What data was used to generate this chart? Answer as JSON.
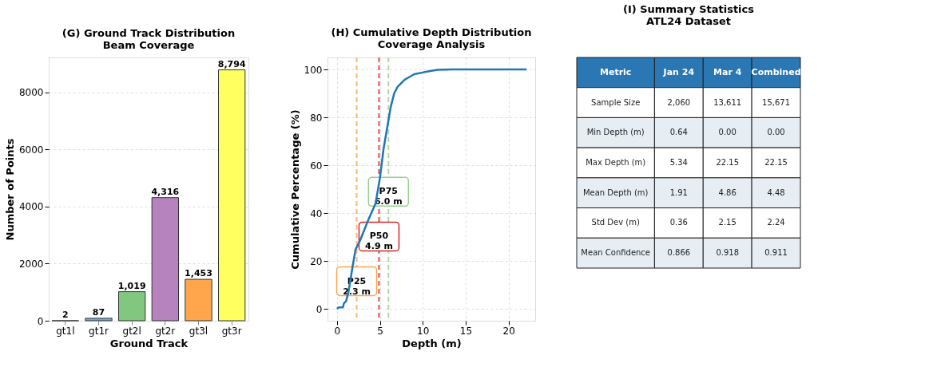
{
  "chart_data": [
    {
      "type": "bar",
      "title": "(G) Ground Track Distribution\nBeam Coverage",
      "xlabel": "Ground Track",
      "ylabel": "Number of Points",
      "categories": [
        "gt1l",
        "gt1r",
        "gt2l",
        "gt2r",
        "gt3l",
        "gt3r"
      ],
      "values": [
        2,
        87,
        1019,
        4316,
        1453,
        8794
      ],
      "colors": [
        "#ec5f60",
        "#7aa5d2",
        "#82c780",
        "#b683be",
        "#ffa54c",
        "#ffff60"
      ],
      "value_labels": [
        "2",
        "87",
        "1,019",
        "4,316",
        "1,453",
        "8,794"
      ],
      "ylim": [
        0,
        9230
      ],
      "yticks": [
        0,
        2000,
        4000,
        6000,
        8000
      ],
      "grid": "y"
    },
    {
      "type": "line",
      "title": "(H) Cumulative Depth Distribution\nCoverage Analysis",
      "xlabel": "Depth (m)",
      "ylabel": "Cumulative Percentage (%)",
      "x": [
        0,
        0.2,
        0.7,
        0.8,
        1.07,
        1.34,
        1.75,
        2.16,
        2.7,
        3.66,
        4.5,
        5.0,
        5.44,
        5.85,
        6.26,
        6.67,
        7.08,
        7.9,
        9.0,
        10.1,
        11.7,
        13.4,
        22.1
      ],
      "series": [
        {
          "color": "#1f77b4",
          "values": [
            0,
            0.6,
            0.6,
            2.2,
            3.2,
            7,
            16,
            24.7,
            28.6,
            37.2,
            44,
            54.5,
            67,
            75.6,
            84.2,
            90,
            92.8,
            95.7,
            98,
            98.8,
            99.8,
            100,
            100
          ]
        }
      ],
      "xlim": [
        -1.1,
        23.1
      ],
      "xticks": [
        0,
        5,
        10,
        15,
        20
      ],
      "ylim": [
        -5,
        105
      ],
      "yticks": [
        0,
        20,
        40,
        60,
        80,
        100
      ],
      "grid": true,
      "ref_lines": [
        {
          "axis": "x",
          "value": 2.3,
          "label": "P25\n2.3 m",
          "color": "#ffa54c",
          "line_style": "dashed"
        },
        {
          "axis": "x",
          "value": 4.9,
          "label": "P50\n4.9 m",
          "color": "#d62728",
          "line_style": "dashed"
        },
        {
          "axis": "x",
          "value": 6.0,
          "label": "P75\n6.0 m",
          "color": "#98d08f",
          "line_style": "dashed"
        }
      ]
    },
    {
      "type": "other",
      "title": "(I) Summary Statistics\nATL24 Dataset",
      "color": "#2a77b4",
      "categories": [
        "Metric",
        "Jan 24",
        "Mar 4",
        "Combined"
      ],
      "annotations": [
        "Sample Size",
        "2,060",
        "13,611",
        "15,671",
        "Min Depth (m)",
        "0.64",
        "0.00",
        "0.00",
        "Max Depth (m)",
        "5.34",
        "22.15",
        "22.15",
        "Mean Depth (m)",
        "1.91",
        "4.86",
        "4.48",
        "Std Dev (m)",
        "0.36",
        "2.15",
        "2.24",
        "Mean Confidence",
        "0.866",
        "0.918",
        "0.911"
      ]
    }
  ]
}
